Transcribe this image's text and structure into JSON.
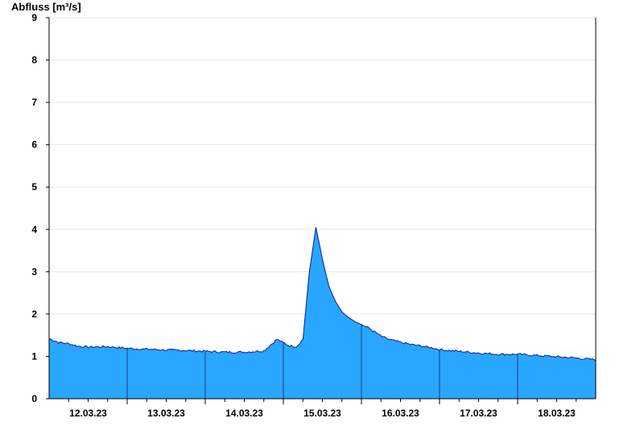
{
  "chart_data": {
    "type": "area",
    "ylabel": "Abfluss [m³/s]",
    "ylim": [
      0,
      9
    ],
    "yticks": [
      0,
      1,
      2,
      3,
      4,
      5,
      6,
      7,
      8,
      9
    ],
    "xlim": [
      "2023-03-11T12:00",
      "2023-03-18T12:00"
    ],
    "day_boundaries": [
      "12.03.23 12:00",
      "13.03.23 12:00",
      "14.03.23 12:00",
      "15.03.23 12:00",
      "16.03.23 12:00",
      "17.03.23 12:00",
      "18.03.23 12:00"
    ],
    "xtick_labels": [
      "12.03.23",
      "13.03.23",
      "14.03.23",
      "15.03.23",
      "16.03.23",
      "17.03.23",
      "18.03.23"
    ],
    "grid": true,
    "fill_color": "#29a6ff",
    "line_color": "#0a1f8c",
    "series": [
      {
        "x_hours": [
          0,
          3,
          6,
          9,
          12,
          18,
          24,
          30,
          36,
          42,
          48,
          54,
          60,
          66,
          70,
          72,
          74,
          76,
          78,
          80,
          82,
          84,
          86,
          88,
          90,
          92,
          94,
          96,
          98,
          100,
          102,
          104,
          106,
          108,
          110,
          112,
          114,
          116,
          118,
          120,
          126,
          132,
          138,
          144,
          150,
          156,
          162,
          168
        ],
        "values": [
          1.42,
          1.33,
          1.3,
          1.24,
          1.22,
          1.23,
          1.19,
          1.17,
          1.15,
          1.14,
          1.12,
          1.1,
          1.1,
          1.13,
          1.4,
          1.32,
          1.25,
          1.23,
          1.4,
          3.0,
          4.05,
          3.3,
          2.65,
          2.3,
          2.05,
          1.92,
          1.82,
          1.75,
          1.68,
          1.58,
          1.48,
          1.41,
          1.37,
          1.33,
          1.3,
          1.27,
          1.25,
          1.22,
          1.2,
          1.16,
          1.12,
          1.08,
          1.05,
          1.05,
          1.02,
          0.99,
          0.96,
          0.92
        ]
      }
    ]
  }
}
